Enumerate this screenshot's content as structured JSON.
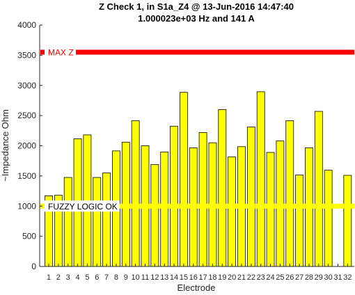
{
  "chart_data": {
    "type": "bar",
    "title_line1": "Z Check 1, in S1a_Z4 @ 13-Jun-2016 14:47:40",
    "title_line2": "1.000023e+03 Hz and 141 A",
    "xlabel": "Electrode",
    "ylabel": "~Impedance Ohm",
    "ylim": [
      0,
      4000
    ],
    "yticks": [
      0,
      500,
      1000,
      1500,
      2000,
      2500,
      3000,
      3500,
      4000
    ],
    "categories": [
      "1",
      "2",
      "3",
      "4",
      "5",
      "6",
      "7",
      "8",
      "9",
      "10",
      "11",
      "12",
      "13",
      "14",
      "15",
      "16",
      "17",
      "18",
      "19",
      "20",
      "21",
      "22",
      "23",
      "24",
      "25",
      "26",
      "27",
      "28",
      "29",
      "30",
      "31",
      "32"
    ],
    "values": [
      1170,
      1180,
      1475,
      2115,
      2180,
      1475,
      1550,
      1915,
      2060,
      2415,
      2000,
      1690,
      1895,
      2325,
      2885,
      1965,
      2220,
      2050,
      2600,
      1815,
      1985,
      2310,
      2895,
      1890,
      2080,
      2415,
      1515,
      1965,
      2570,
      1595,
      0,
      1510
    ],
    "bar_color": "#ffff00",
    "bar_edge_color": "#000000",
    "grid": false,
    "reference_lines": [
      {
        "label": "MAX Z",
        "value": 3550,
        "color": "#ff0000",
        "text_color": "#ff0000"
      },
      {
        "label": "FUZZY LOGIC OK",
        "value": 1000,
        "color": "#ffff00",
        "text_color": "#000000"
      }
    ]
  }
}
